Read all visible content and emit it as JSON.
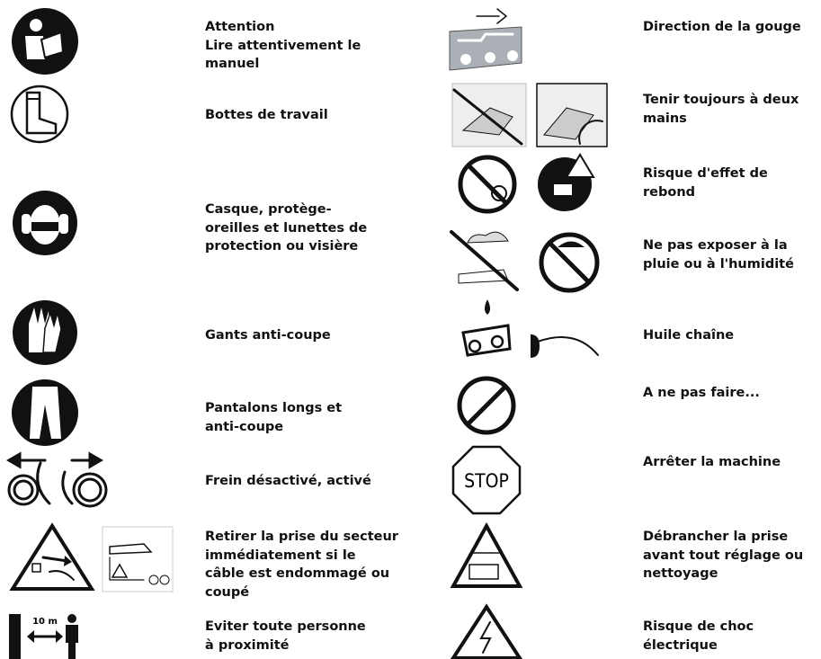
{
  "left": [
    {
      "lines": [
        "Attention",
        "Lire attentivement le",
        "manuel"
      ]
    },
    {
      "lines": [
        "Bottes de travail"
      ]
    },
    {
      "lines": [
        "Casque, protège-",
        "oreilles et lunettes de",
        "protection ou visière"
      ]
    },
    {
      "lines": [
        "Gants anti-coupe"
      ]
    },
    {
      "lines": [
        "Pantalons longs et",
        "anti-coupe"
      ]
    },
    {
      "lines": [
        "Frein désactivé, activé"
      ]
    },
    {
      "lines": [
        "Retirer la prise du secteur",
        "immédiatement si le",
        "câble est endommagé ou",
        "coupé"
      ]
    },
    {
      "lines": [
        "Eviter toute personne",
        "à proximité"
      ],
      "icon_text": "10 m"
    }
  ],
  "right": [
    {
      "lines": [
        "Direction de la gouge"
      ]
    },
    {
      "lines": [
        "Tenir toujours à deux",
        "mains"
      ]
    },
    {
      "lines": [
        "Risque d'effet de",
        "rebond"
      ]
    },
    {
      "lines": [
        "Ne pas exposer à la",
        "pluie ou à l'humidité"
      ]
    },
    {
      "lines": [
        "Huile chaîne"
      ]
    },
    {
      "lines": [
        "A ne pas faire..."
      ]
    },
    {
      "lines": [
        "Arrêter la machine"
      ],
      "icon_text": "STOP"
    },
    {
      "lines": [
        "Débrancher la prise",
        "avant tout réglage ou",
        "nettoyage"
      ]
    },
    {
      "lines": [
        "Risque de choc",
        "électrique"
      ]
    }
  ]
}
